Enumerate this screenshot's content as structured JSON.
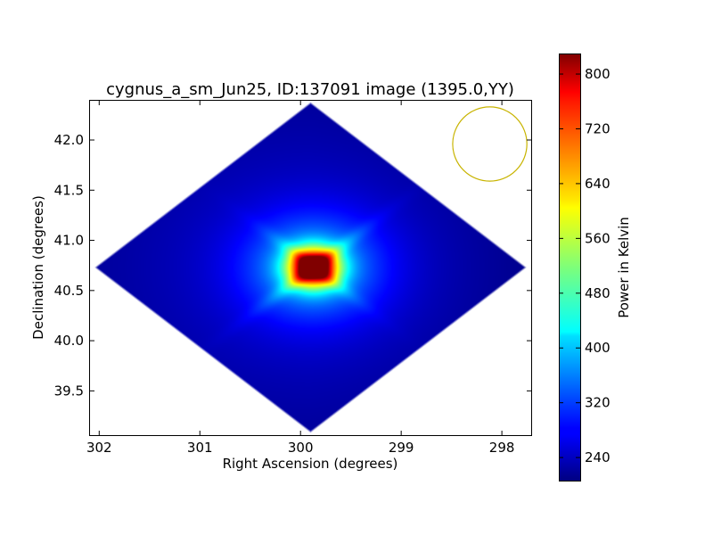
{
  "chart_data": {
    "type": "heatmap",
    "title": "cygnus_a_sm_Jun25, ID:137091 image (1395.0,YY)",
    "xlabel": "Right Ascension (degrees)",
    "ylabel": "Declination (degrees)",
    "colorbar_label": "Power in Kelvin",
    "colormap": "jet",
    "xlim": [
      302.1,
      297.7
    ],
    "ylim": [
      39.05,
      42.4
    ],
    "x_ticks": [
      302,
      301,
      300,
      299,
      298
    ],
    "x_tick_labels": [
      "302",
      "301",
      "300",
      "299",
      "298"
    ],
    "y_ticks": [
      39.5,
      40.0,
      40.5,
      41.0,
      41.5,
      42.0
    ],
    "y_tick_labels": [
      "39.5",
      "40.0",
      "40.5",
      "41.0",
      "41.5",
      "42.0"
    ],
    "colorbar_range": [
      205,
      830
    ],
    "colorbar_ticks": [
      240,
      320,
      400,
      480,
      560,
      640,
      720,
      800
    ],
    "colorbar_tick_labels": [
      "240",
      "320",
      "400",
      "480",
      "560",
      "640",
      "720",
      "800"
    ],
    "source": {
      "name": "Cygnus A",
      "ra": 299.87,
      "dec": 40.73,
      "peak_kelvin": 830,
      "background_kelvin": 215
    },
    "map_extent": {
      "ra_center": 299.9,
      "dec_center": 40.73,
      "ra_half_width": 2.15,
      "dec_half_width": 1.65
    },
    "beam": {
      "ra": 298.12,
      "dec": 41.96,
      "dec_radius": 0.37,
      "color": "#c8b400"
    }
  }
}
